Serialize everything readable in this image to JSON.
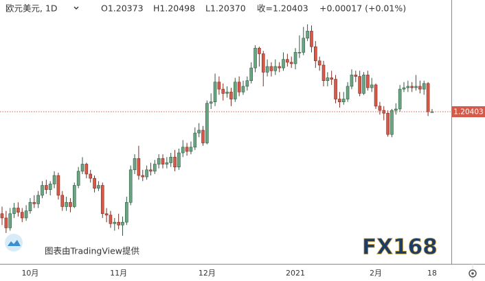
{
  "header": {
    "symbol": "欧元美元, 1D",
    "open": "O1.20373",
    "high": "H1.20498",
    "low": "L1.20370",
    "close": "收=1.20403",
    "change": "+0.00017 (+0.01%)"
  },
  "credit": "图表由TradingView提供",
  "watermark": "FX168",
  "chart_data": {
    "type": "candlestick",
    "up_color": "#6aa583",
    "down_color": "#d65a4a",
    "price_label": 1.20403,
    "ylim": [
      1.151,
      1.2435
    ],
    "categories": [
      null,
      null,
      null,
      null,
      null,
      null,
      null,
      "10月",
      null,
      null,
      null,
      null,
      null,
      null,
      null,
      null,
      null,
      null,
      null,
      null,
      null,
      null,
      null,
      null,
      null,
      null,
      null,
      null,
      null,
      "11月",
      null,
      null,
      null,
      null,
      null,
      null,
      null,
      null,
      null,
      null,
      null,
      null,
      null,
      null,
      null,
      null,
      null,
      null,
      null,
      null,
      null,
      "12月",
      null,
      null,
      null,
      null,
      null,
      null,
      null,
      null,
      null,
      null,
      null,
      null,
      null,
      null,
      null,
      null,
      null,
      null,
      null,
      null,
      null,
      "2021",
      null,
      null,
      null,
      null,
      null,
      null,
      null,
      null,
      null,
      null,
      null,
      null,
      null,
      null,
      null,
      null,
      null,
      null,
      null,
      "2月",
      null,
      null,
      null,
      null,
      null,
      null,
      null,
      null,
      null,
      null,
      null,
      null,
      null,
      "18"
    ],
    "open": [
      1.168,
      1.1665,
      1.163,
      1.168,
      1.17,
      1.1685,
      1.1665,
      1.169,
      1.172,
      1.1715,
      1.1745,
      1.178,
      1.1765,
      1.1785,
      1.1815,
      1.1745,
      1.1705,
      1.172,
      1.1705,
      1.178,
      1.183,
      1.1855,
      1.182,
      1.1805,
      1.177,
      1.178,
      1.168,
      1.1675,
      1.1645,
      1.165,
      1.164,
      1.165,
      1.172,
      1.1835,
      1.1875,
      1.1815,
      1.181,
      1.1835,
      1.183,
      1.1855,
      1.1875,
      1.1855,
      1.186,
      1.188,
      1.1845,
      1.1895,
      1.1915,
      1.19,
      1.1915,
      1.1965,
      1.1975,
      1.193,
      1.207,
      1.2075,
      1.2145,
      1.212,
      1.2105,
      1.211,
      1.2085,
      1.2145,
      1.211,
      1.213,
      1.215,
      1.2195,
      1.2265,
      1.2245,
      1.218,
      1.22,
      1.2185,
      1.22,
      1.2195,
      1.2225,
      1.2215,
      1.221,
      1.225,
      1.225,
      1.23,
      1.2325,
      1.227,
      1.222,
      1.2205,
      1.215,
      1.216,
      1.2155,
      1.2085,
      1.2075,
      1.2085,
      1.213,
      1.217,
      1.2165,
      1.2105,
      1.217,
      1.2125,
      1.2135,
      1.206,
      1.2045,
      1.2035,
      1.196,
      1.2045,
      1.205,
      1.212,
      1.2125,
      1.213,
      1.2125,
      1.213,
      1.212,
      1.214,
      1.20373
    ],
    "high": [
      1.1705,
      1.169,
      1.17,
      1.1718,
      1.172,
      1.17,
      1.171,
      1.1735,
      1.1745,
      1.176,
      1.1795,
      1.18,
      1.1795,
      1.183,
      1.1825,
      1.176,
      1.174,
      1.1735,
      1.179,
      1.1845,
      1.188,
      1.186,
      1.1835,
      1.1815,
      1.1795,
      1.179,
      1.17,
      1.169,
      1.1665,
      1.168,
      1.167,
      1.174,
      1.185,
      1.189,
      1.192,
      1.1835,
      1.185,
      1.186,
      1.187,
      1.189,
      1.189,
      1.188,
      1.1895,
      1.1905,
      1.191,
      1.194,
      1.193,
      1.1935,
      1.1985,
      1.2,
      1.199,
      1.208,
      1.2105,
      1.2175,
      1.2165,
      1.214,
      1.213,
      1.2125,
      1.216,
      1.2165,
      1.215,
      1.2165,
      1.2215,
      1.2275,
      1.227,
      1.2255,
      1.2225,
      1.2215,
      1.2225,
      1.2215,
      1.225,
      1.2245,
      1.2235,
      1.2265,
      1.231,
      1.234,
      1.2349,
      1.2345,
      1.229,
      1.2235,
      1.222,
      1.218,
      1.2185,
      1.217,
      1.211,
      1.211,
      1.2145,
      1.219,
      1.2185,
      1.2185,
      1.218,
      1.2185,
      1.216,
      1.214,
      1.2075,
      1.206,
      1.2045,
      1.205,
      1.207,
      1.2135,
      1.2145,
      1.215,
      1.2145,
      1.217,
      1.215,
      1.215,
      1.2145,
      1.20498
    ],
    "low": [
      1.164,
      1.1612,
      1.162,
      1.1665,
      1.167,
      1.165,
      1.1655,
      1.168,
      1.17,
      1.17,
      1.1735,
      1.175,
      1.1745,
      1.177,
      1.173,
      1.169,
      1.169,
      1.1685,
      1.17,
      1.177,
      1.182,
      1.1805,
      1.179,
      1.1755,
      1.176,
      1.1665,
      1.165,
      1.163,
      1.162,
      1.1625,
      1.1602,
      1.164,
      1.171,
      1.182,
      1.18,
      1.1795,
      1.18,
      1.1815,
      1.182,
      1.184,
      1.184,
      1.184,
      1.1845,
      1.183,
      1.1835,
      1.188,
      1.1885,
      1.189,
      1.1905,
      1.195,
      1.192,
      1.1925,
      1.205,
      1.206,
      1.21,
      1.208,
      1.209,
      1.206,
      1.2075,
      1.2095,
      1.21,
      1.2115,
      1.214,
      1.218,
      1.22,
      1.213,
      1.2165,
      1.2165,
      1.217,
      1.218,
      1.2185,
      1.22,
      1.2195,
      1.219,
      1.223,
      1.224,
      1.229,
      1.225,
      1.2195,
      1.2185,
      1.213,
      1.213,
      1.2135,
      1.207,
      1.2055,
      1.2065,
      1.2075,
      1.212,
      1.2145,
      1.2095,
      1.21,
      1.2115,
      1.211,
      1.205,
      1.203,
      1.201,
      1.1952,
      1.195,
      1.203,
      1.204,
      1.211,
      1.211,
      1.211,
      1.2115,
      1.2105,
      1.21,
      1.2025,
      1.2037
    ],
    "close": [
      1.1665,
      1.163,
      1.168,
      1.17,
      1.1685,
      1.1665,
      1.169,
      1.172,
      1.1715,
      1.1745,
      1.178,
      1.1765,
      1.1785,
      1.1815,
      1.1745,
      1.1705,
      1.172,
      1.1705,
      1.178,
      1.183,
      1.1855,
      1.182,
      1.1805,
      1.177,
      1.178,
      1.168,
      1.1675,
      1.1645,
      1.165,
      1.164,
      1.165,
      1.172,
      1.1835,
      1.1875,
      1.1815,
      1.181,
      1.1835,
      1.183,
      1.1855,
      1.1875,
      1.1855,
      1.186,
      1.188,
      1.1845,
      1.1895,
      1.1915,
      1.19,
      1.1915,
      1.1965,
      1.1975,
      1.193,
      1.207,
      1.2075,
      1.2145,
      1.212,
      1.2105,
      1.211,
      1.2085,
      1.2145,
      1.211,
      1.213,
      1.215,
      1.2195,
      1.2265,
      1.2245,
      1.218,
      1.22,
      1.2185,
      1.22,
      1.2195,
      1.2225,
      1.2215,
      1.221,
      1.225,
      1.225,
      1.23,
      1.2325,
      1.227,
      1.222,
      1.2205,
      1.215,
      1.216,
      1.2155,
      1.2085,
      1.2075,
      1.2085,
      1.213,
      1.217,
      1.2165,
      1.2105,
      1.217,
      1.2125,
      1.2135,
      1.206,
      1.2045,
      1.2035,
      1.196,
      1.2045,
      1.205,
      1.212,
      1.2125,
      1.213,
      1.2125,
      1.213,
      1.212,
      1.214,
      1.204,
      1.20403
    ]
  }
}
